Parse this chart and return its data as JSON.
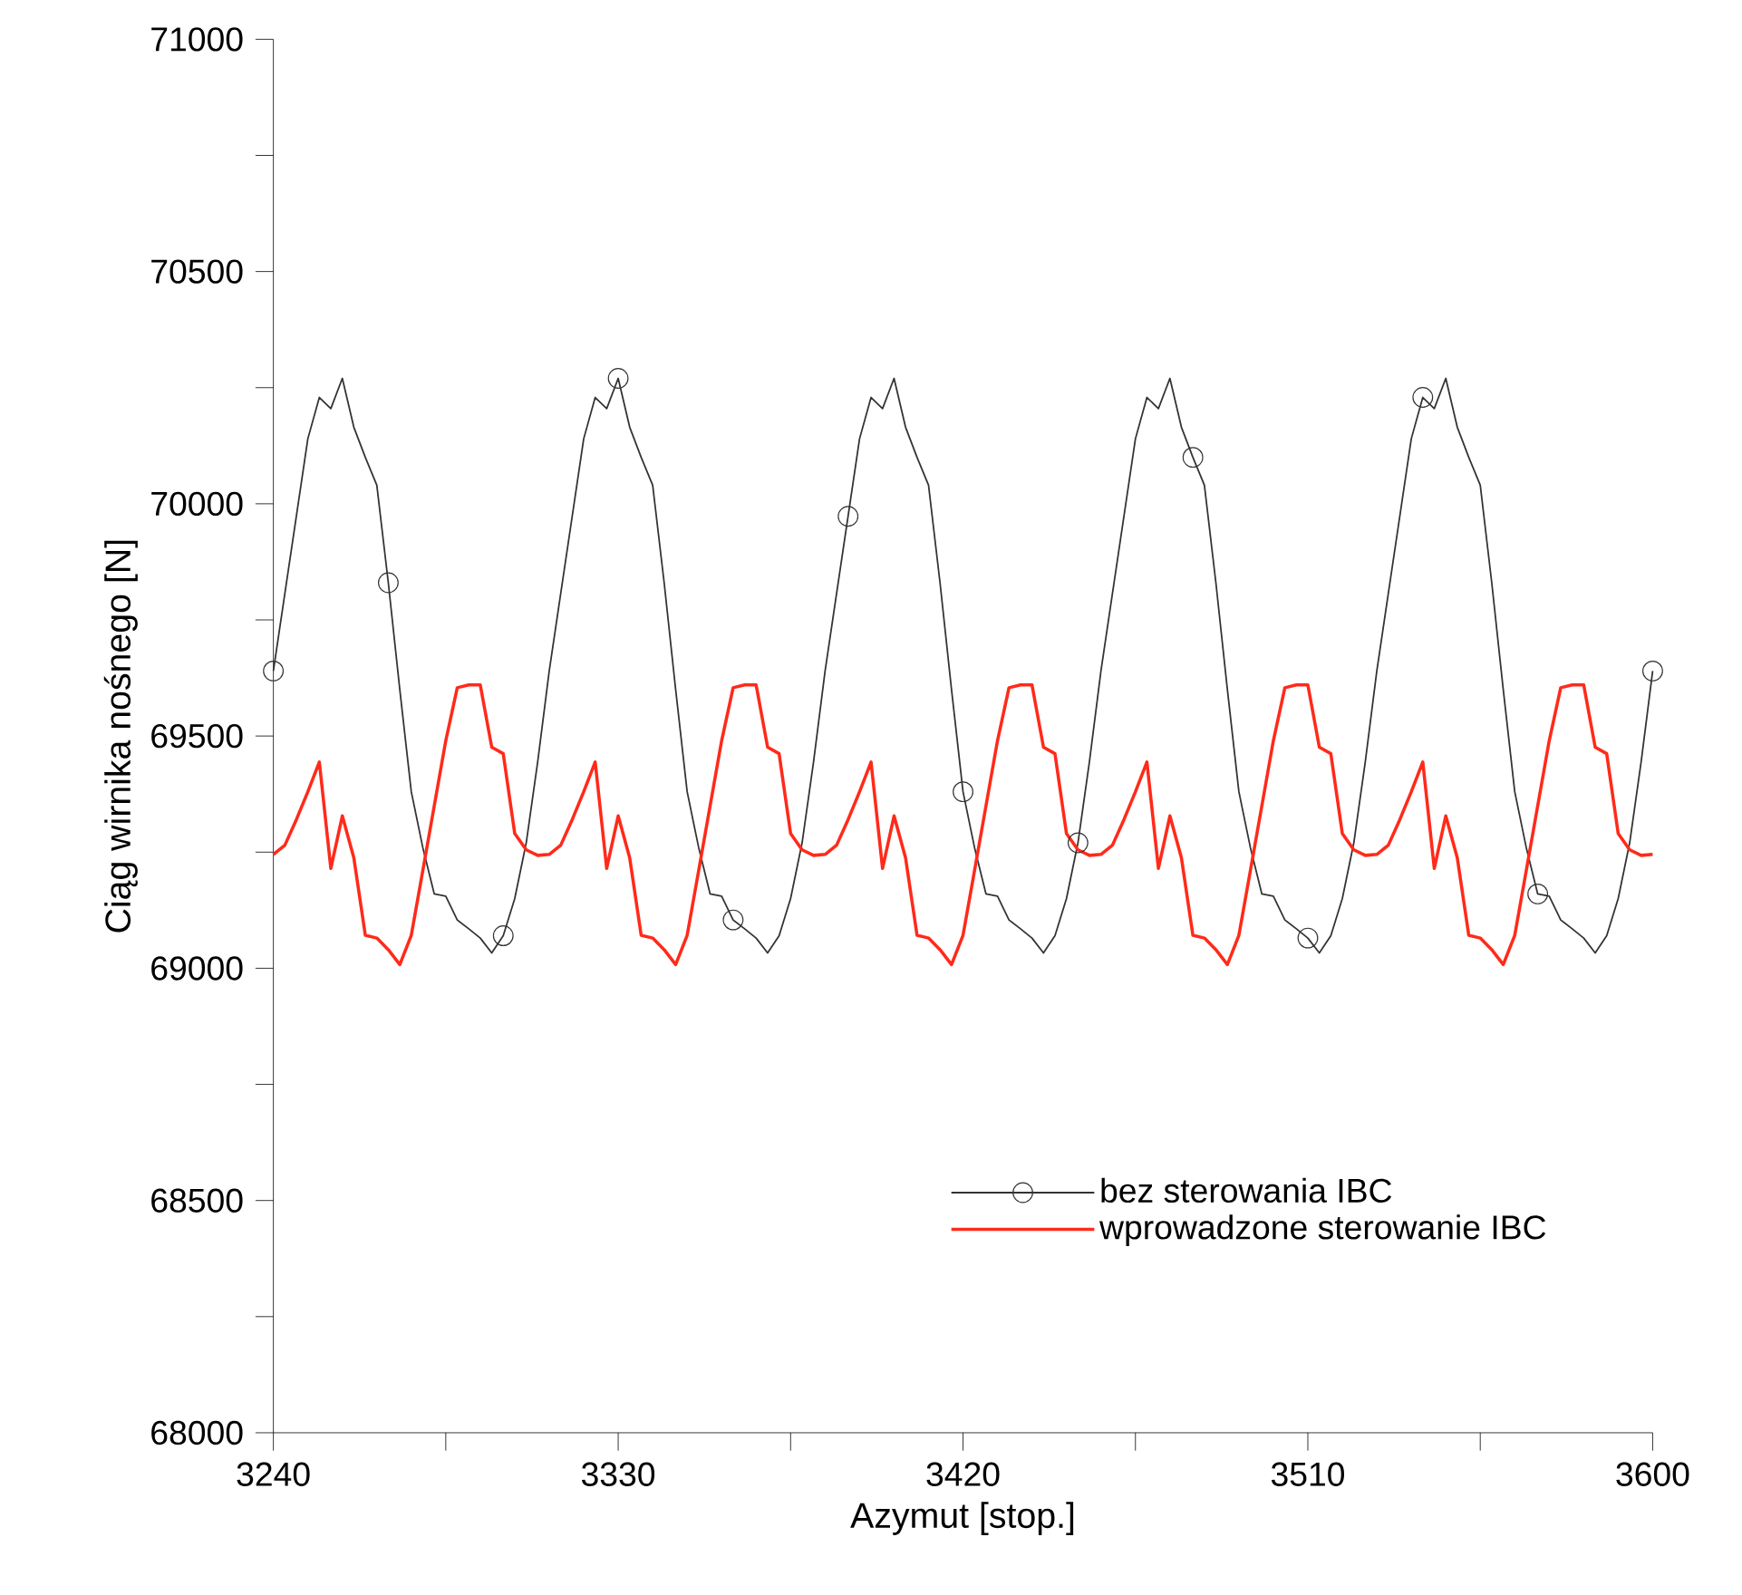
{
  "chart_data": {
    "type": "line",
    "xlabel": "Azymut [stop.]",
    "ylabel": "Ciąg wirnika nośnego [N]",
    "x": [
      3240,
      3243,
      3246,
      3249,
      3252,
      3255,
      3258,
      3261,
      3264,
      3267,
      3270,
      3273,
      3276,
      3279,
      3282,
      3285,
      3288,
      3291,
      3294,
      3297,
      3300,
      3303,
      3306,
      3309,
      3312,
      3315,
      3318,
      3321,
      3324,
      3327,
      3330,
      3333,
      3336,
      3339,
      3342,
      3345,
      3348,
      3351,
      3354,
      3357,
      3360,
      3363,
      3366,
      3369,
      3372,
      3375,
      3378,
      3381,
      3384,
      3387,
      3390,
      3393,
      3396,
      3399,
      3402,
      3405,
      3408,
      3411,
      3414,
      3417,
      3420,
      3423,
      3426,
      3429,
      3432,
      3435,
      3438,
      3441,
      3444,
      3447,
      3450,
      3453,
      3456,
      3459,
      3462,
      3465,
      3468,
      3471,
      3474,
      3477,
      3480,
      3483,
      3486,
      3489,
      3492,
      3495,
      3498,
      3501,
      3504,
      3507,
      3510,
      3513,
      3516,
      3519,
      3522,
      3525,
      3528,
      3531,
      3534,
      3537,
      3540,
      3543,
      3546,
      3549,
      3552,
      3555,
      3558,
      3561,
      3564,
      3567,
      3570,
      3573,
      3576,
      3579,
      3582,
      3585,
      3588,
      3591,
      3594,
      3597,
      3600
    ],
    "series": [
      {
        "name": "bez sterowania IBC",
        "color": "#333333",
        "marker": "none",
        "values": [
          69640,
          69807,
          69973,
          70140,
          70229,
          70205,
          70270,
          70165,
          70100,
          70040,
          69830,
          69600,
          69380,
          69260,
          69160,
          69155,
          69104,
          69085,
          69065,
          69033,
          69070,
          69150,
          69270,
          69445,
          69640,
          69807,
          69973,
          70140,
          70229,
          70205,
          70270,
          70165,
          70100,
          70040,
          69830,
          69600,
          69380,
          69260,
          69160,
          69155,
          69104,
          69085,
          69065,
          69033,
          69070,
          69150,
          69270,
          69445,
          69640,
          69807,
          69973,
          70140,
          70229,
          70205,
          70270,
          70165,
          70100,
          70040,
          69830,
          69600,
          69380,
          69260,
          69160,
          69155,
          69104,
          69085,
          69065,
          69033,
          69070,
          69150,
          69270,
          69445,
          69640,
          69807,
          69973,
          70140,
          70229,
          70205,
          70270,
          70165,
          70100,
          70040,
          69830,
          69600,
          69380,
          69260,
          69160,
          69155,
          69104,
          69085,
          69065,
          69033,
          69070,
          69150,
          69270,
          69445,
          69640,
          69807,
          69973,
          70140,
          70229,
          70205,
          70270,
          70165,
          70100,
          70040,
          69830,
          69600,
          69380,
          69260,
          69160,
          69155,
          69104,
          69085,
          69065,
          69033,
          69070,
          69150,
          69270,
          69445,
          69640
        ]
      },
      {
        "type": "scatter",
        "color": "#333333",
        "marker": "circle",
        "x": [
          3240,
          3270,
          3300,
          3330,
          3360,
          3390,
          3420,
          3450,
          3480,
          3510,
          3540,
          3570,
          3600
        ],
        "values": [
          69640,
          69830,
          69070,
          70270,
          69104,
          69973,
          69380,
          69270,
          70100,
          69065,
          70229,
          69160,
          69640
        ]
      },
      {
        "name": "wprowadzone sterowanie IBC",
        "color": "#ff2a1a",
        "marker": "none",
        "values": [
          69245,
          69265,
          69320,
          69380,
          69444,
          69215,
          69328,
          69238,
          69071,
          69065,
          69040,
          69008,
          69071,
          69210,
          69350,
          69490,
          69604,
          69610,
          69610,
          69476,
          69462,
          69290,
          69255,
          69243,
          69245,
          69265,
          69320,
          69380,
          69444,
          69215,
          69328,
          69238,
          69071,
          69065,
          69040,
          69008,
          69071,
          69210,
          69350,
          69490,
          69604,
          69610,
          69610,
          69476,
          69462,
          69290,
          69255,
          69243,
          69245,
          69265,
          69320,
          69380,
          69444,
          69215,
          69328,
          69238,
          69071,
          69065,
          69040,
          69008,
          69071,
          69210,
          69350,
          69490,
          69604,
          69610,
          69610,
          69476,
          69462,
          69290,
          69255,
          69243,
          69245,
          69265,
          69320,
          69380,
          69444,
          69215,
          69328,
          69238,
          69071,
          69065,
          69040,
          69008,
          69071,
          69210,
          69350,
          69490,
          69604,
          69610,
          69610,
          69476,
          69462,
          69290,
          69255,
          69243,
          69245,
          69265,
          69320,
          69380,
          69444,
          69215,
          69328,
          69238,
          69071,
          69065,
          69040,
          69008,
          69071,
          69210,
          69350,
          69490,
          69604,
          69610,
          69610,
          69476,
          69462,
          69290,
          69255,
          69243,
          69245
        ]
      }
    ],
    "xlim": [
      3240,
      3600
    ],
    "ylim": [
      68000,
      71000
    ],
    "xticks": [
      3240,
      {
        "value": 3285,
        "label": null
      },
      3330,
      {
        "value": 3375,
        "label": null
      },
      3420,
      {
        "value": 3465,
        "label": null
      },
      3510,
      {
        "value": 3555,
        "label": null
      },
      3600
    ],
    "yticks": [
      68000,
      {
        "value": 68250,
        "label": null
      },
      68500,
      {
        "value": 68750,
        "label": null
      },
      69000,
      {
        "value": 69250,
        "label": null
      },
      69500,
      {
        "value": 69750,
        "label": null
      },
      70000,
      {
        "value": 70250,
        "label": null
      },
      70500,
      {
        "value": 70750,
        "label": null
      },
      71000
    ],
    "grid": false,
    "legend": "bottom right",
    "line_style": "solid"
  }
}
